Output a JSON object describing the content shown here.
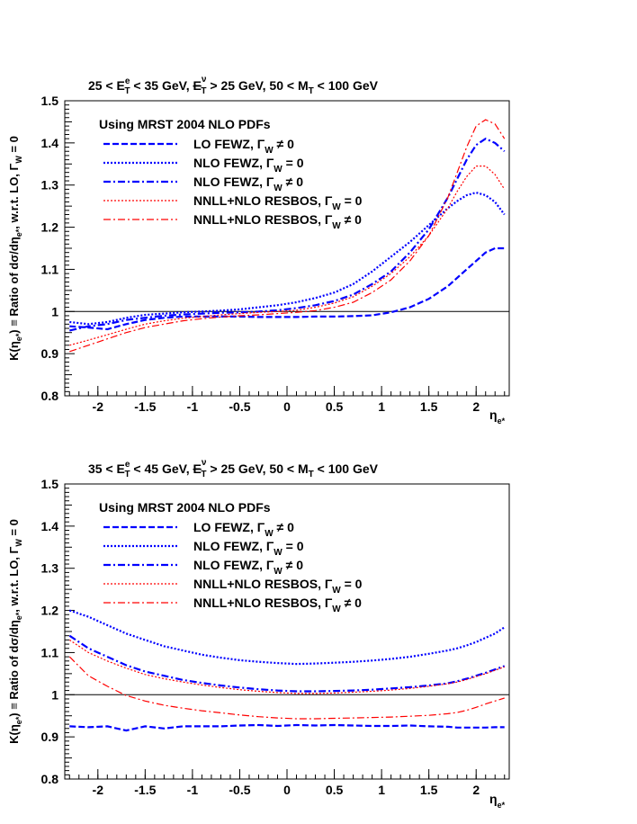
{
  "chart_data": [
    {
      "type": "line",
      "title": "25 < Eᵀᵉ < 35 GeV, E̸ᵀᵛ > 25 GeV, 50 < Mᵀ < 100 GeV",
      "title_parts": {
        "a": "25 < E",
        "a_sup": "e",
        "a_sub": "T",
        "b": " < 35 GeV, ",
        "c": "E",
        "c_sup": "ν",
        "c_sub": "T",
        "d": " > 25 GeV,  50 < M",
        "d_sub": "T",
        "e": " < 100 GeV"
      },
      "ylabel": "K(ηe*) ≡ Ratio of dσ/dηe*, w.r.t. LO, ΓW = 0",
      "ylabel_parts": {
        "a": "K(η",
        "a_sub": "e*",
        "b": ") ≡ Ratio of dσ/dη",
        "b_sub": "e*",
        "c": ", w.r.t. LO, Γ",
        "c_sub": "W",
        "d": " = 0"
      },
      "xlabel": "ηe*",
      "xlabel_parts": {
        "a": "η",
        "a_sub": "e*"
      },
      "xlim": [
        -2.35,
        2.35
      ],
      "ylim": [
        0.8,
        1.5
      ],
      "xticks": [
        "-2",
        "-1.5",
        "-1",
        "-0.5",
        "0",
        "0.5",
        "1",
        "1.5",
        "2"
      ],
      "yticks": [
        "0.8",
        "0.9",
        "1",
        "1.1",
        "1.2",
        "1.3",
        "1.4",
        "1.5"
      ],
      "reference_line": 1,
      "legend_header": "Using MRST 2004 NLO PDFs",
      "x": [
        -2.3,
        -2.1,
        -1.9,
        -1.7,
        -1.5,
        -1.3,
        -1.1,
        -0.9,
        -0.7,
        -0.5,
        -0.3,
        -0.1,
        0.1,
        0.3,
        0.5,
        0.7,
        0.9,
        1.1,
        1.3,
        1.5,
        1.7,
        1.8,
        1.9,
        2.0,
        2.1,
        2.2,
        2.3
      ],
      "series": [
        {
          "name": "LO FEWZ, ΓW ≠ 0",
          "label": "LO FEWZ, Γ",
          "sub": "W",
          "rel": " ≠ 0",
          "color": "#0000ff",
          "style": "dash",
          "width": 2.2,
          "values": [
            0.965,
            0.962,
            0.958,
            0.97,
            0.98,
            0.985,
            0.988,
            0.988,
            0.988,
            0.988,
            0.987,
            0.987,
            0.987,
            0.988,
            0.988,
            0.989,
            0.991,
            0.998,
            1.01,
            1.03,
            1.06,
            1.08,
            1.1,
            1.12,
            1.14,
            1.15,
            1.15
          ]
        },
        {
          "name": "NLO FEWZ, ΓW = 0",
          "label": "NLO FEWZ, Γ",
          "sub": "W",
          "rel": " = 0",
          "color": "#0000ff",
          "style": "dot",
          "width": 2.2,
          "values": [
            0.975,
            0.97,
            0.975,
            0.985,
            0.992,
            0.995,
            0.998,
            1.0,
            1.002,
            1.005,
            1.01,
            1.015,
            1.022,
            1.032,
            1.045,
            1.065,
            1.095,
            1.13,
            1.165,
            1.205,
            1.245,
            1.262,
            1.276,
            1.282,
            1.276,
            1.26,
            1.23
          ]
        },
        {
          "name": "NLO FEWZ, ΓW ≠ 0",
          "label": "NLO FEWZ, Γ",
          "sub": "W",
          "rel": " ≠ 0",
          "color": "#0000ff",
          "style": "dashdot",
          "width": 2.2,
          "values": [
            0.955,
            0.965,
            0.97,
            0.98,
            0.985,
            0.99,
            0.993,
            0.995,
            0.997,
            0.998,
            1.0,
            1.003,
            1.008,
            1.015,
            1.025,
            1.04,
            1.065,
            1.095,
            1.14,
            1.195,
            1.27,
            1.315,
            1.36,
            1.395,
            1.41,
            1.4,
            1.38
          ]
        },
        {
          "name": "NNLL+NLO RESBOS, ΓW = 0",
          "label": "NNLL+NLO RESBOS, Γ",
          "sub": "W",
          "rel": " = 0",
          "color": "#ff0000",
          "style": "dot",
          "width": 1.2,
          "values": [
            0.92,
            0.932,
            0.945,
            0.958,
            0.97,
            0.978,
            0.984,
            0.988,
            0.992,
            0.995,
            0.998,
            1.0,
            1.003,
            1.01,
            1.02,
            1.035,
            1.06,
            1.09,
            1.13,
            1.18,
            1.245,
            1.285,
            1.32,
            1.345,
            1.345,
            1.325,
            1.29
          ]
        },
        {
          "name": "NNLL+NLO RESBOS, ΓW ≠ 0",
          "label": "NNLL+NLO RESBOS, Γ",
          "sub": "W",
          "rel": " ≠ 0",
          "color": "#ff0000",
          "style": "dashdot",
          "width": 1.2,
          "values": [
            0.905,
            0.92,
            0.935,
            0.95,
            0.962,
            0.97,
            0.978,
            0.983,
            0.987,
            0.99,
            0.992,
            0.995,
            0.998,
            1.002,
            1.01,
            1.022,
            1.045,
            1.075,
            1.12,
            1.18,
            1.27,
            1.33,
            1.39,
            1.44,
            1.455,
            1.445,
            1.41
          ]
        }
      ]
    },
    {
      "type": "line",
      "title": "35 < Eᵀᵉ < 45 GeV, E̸ᵀᵛ > 25 GeV, 50 < Mᵀ < 100 GeV",
      "title_parts": {
        "a": "35 < E",
        "a_sup": "e",
        "a_sub": "T",
        "b": " < 45 GeV, ",
        "c": "E",
        "c_sup": "ν",
        "c_sub": "T",
        "d": " > 25 GeV,  50 < M",
        "d_sub": "T",
        "e": " < 100 GeV"
      },
      "ylabel": "K(ηe*) ≡ Ratio of dσ/dηe*, w.r.t. LO, ΓW = 0",
      "ylabel_parts": {
        "a": "K(η",
        "a_sub": "e*",
        "b": ") ≡ Ratio of dσ/dη",
        "b_sub": "e*",
        "c": ", w.r.t. LO, Γ",
        "c_sub": "W",
        "d": " = 0"
      },
      "xlabel": "ηe*",
      "xlabel_parts": {
        "a": "η",
        "a_sub": "e*"
      },
      "xlim": [
        -2.35,
        2.35
      ],
      "ylim": [
        0.8,
        1.5
      ],
      "xticks": [
        "-2",
        "-1.5",
        "-1",
        "-0.5",
        "0",
        "0.5",
        "1",
        "1.5",
        "2"
      ],
      "yticks": [
        "0.8",
        "0.9",
        "1",
        "1.1",
        "1.2",
        "1.3",
        "1.4",
        "1.5"
      ],
      "reference_line": 1,
      "legend_header": "Using MRST 2004 NLO PDFs",
      "x": [
        -2.3,
        -2.1,
        -1.9,
        -1.7,
        -1.5,
        -1.3,
        -1.1,
        -0.9,
        -0.7,
        -0.5,
        -0.3,
        -0.1,
        0.1,
        0.3,
        0.5,
        0.7,
        0.9,
        1.1,
        1.3,
        1.5,
        1.7,
        1.8,
        1.9,
        2.0,
        2.1,
        2.2,
        2.3
      ],
      "series": [
        {
          "name": "LO FEWZ, ΓW ≠ 0",
          "label": "LO FEWZ, Γ",
          "sub": "W",
          "rel": " ≠ 0",
          "color": "#0000ff",
          "style": "dash",
          "width": 2.2,
          "values": [
            0.925,
            0.923,
            0.925,
            0.915,
            0.925,
            0.92,
            0.925,
            0.925,
            0.925,
            0.927,
            0.928,
            0.926,
            0.928,
            0.927,
            0.928,
            0.927,
            0.926,
            0.926,
            0.927,
            0.925,
            0.924,
            0.922,
            0.922,
            0.922,
            0.922,
            0.923,
            0.923
          ]
        },
        {
          "name": "NLO FEWZ, ΓW = 0",
          "label": "NLO FEWZ, Γ",
          "sub": "W",
          "rel": " = 0",
          "color": "#0000ff",
          "style": "dot",
          "width": 2.2,
          "values": [
            1.2,
            1.185,
            1.165,
            1.145,
            1.13,
            1.115,
            1.105,
            1.095,
            1.088,
            1.082,
            1.078,
            1.075,
            1.073,
            1.074,
            1.076,
            1.078,
            1.081,
            1.085,
            1.09,
            1.097,
            1.105,
            1.11,
            1.117,
            1.125,
            1.135,
            1.145,
            1.16
          ]
        },
        {
          "name": "NLO FEWZ, ΓW ≠ 0",
          "label": "NLO FEWZ, Γ",
          "sub": "W",
          "rel": " ≠ 0",
          "color": "#0000ff",
          "style": "dashdot",
          "width": 2.2,
          "values": [
            1.14,
            1.11,
            1.09,
            1.07,
            1.055,
            1.045,
            1.035,
            1.028,
            1.022,
            1.017,
            1.013,
            1.01,
            1.008,
            1.008,
            1.009,
            1.01,
            1.012,
            1.015,
            1.018,
            1.022,
            1.027,
            1.032,
            1.038,
            1.045,
            1.052,
            1.06,
            1.068
          ]
        },
        {
          "name": "NNLL+NLO RESBOS, ΓW = 0",
          "label": "NNLL+NLO RESBOS, Γ",
          "sub": "W",
          "rel": " = 0",
          "color": "#ff0000",
          "style": "dot",
          "width": 1.2,
          "values": [
            1.13,
            1.1,
            1.08,
            1.063,
            1.048,
            1.038,
            1.03,
            1.023,
            1.017,
            1.012,
            1.008,
            1.005,
            1.003,
            1.003,
            1.004,
            1.006,
            1.008,
            1.011,
            1.015,
            1.02,
            1.026,
            1.03,
            1.036,
            1.043,
            1.05,
            1.058,
            1.066
          ]
        },
        {
          "name": "NNLL+NLO RESBOS, ΓW ≠ 0",
          "label": "NNLL+NLO RESBOS, Γ",
          "sub": "W",
          "rel": " ≠ 0",
          "color": "#ff0000",
          "style": "dashdot",
          "width": 1.2,
          "values": [
            1.09,
            1.045,
            1.02,
            0.998,
            0.985,
            0.975,
            0.968,
            0.962,
            0.957,
            0.952,
            0.948,
            0.945,
            0.943,
            0.943,
            0.944,
            0.945,
            0.946,
            0.947,
            0.949,
            0.951,
            0.955,
            0.958,
            0.963,
            0.97,
            0.978,
            0.985,
            0.992
          ]
        }
      ]
    }
  ]
}
